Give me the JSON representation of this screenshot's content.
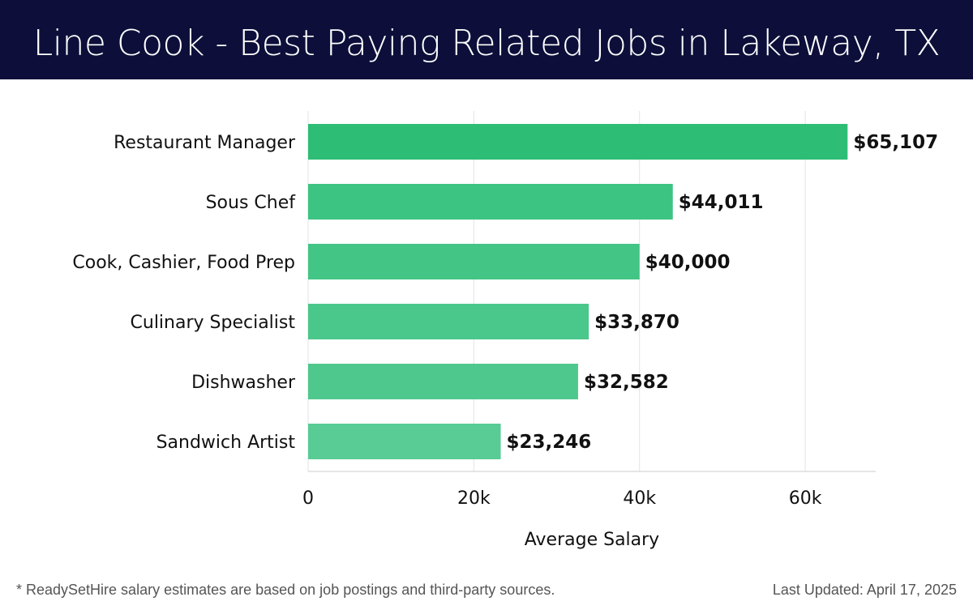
{
  "header": {
    "title": "Line Cook - Best Paying Related Jobs in Lakeway, TX"
  },
  "chart_data": {
    "type": "bar",
    "orientation": "horizontal",
    "categories": [
      "Restaurant Manager",
      "Sous Chef",
      "Cook, Cashier, Food Prep",
      "Culinary Specialist",
      "Dishwasher",
      "Sandwich Artist"
    ],
    "values": [
      65107,
      44011,
      40000,
      33870,
      32582,
      23246
    ],
    "data_labels": [
      "$65,107",
      "$44,011",
      "$40,000",
      "$33,870",
      "$32,582",
      "$23,246"
    ],
    "xlabel": "Average Salary",
    "ylabel": "",
    "xlim": [
      0,
      68500
    ],
    "x_ticks": [
      0,
      20000,
      40000,
      60000
    ],
    "x_tick_labels": [
      "0",
      "20k",
      "40k",
      "60k"
    ],
    "grid": "vertical",
    "colors": [
      "#2dbd75",
      "#3cc482",
      "#42c585",
      "#4ac78a",
      "#4fc88d",
      "#58cc94"
    ]
  },
  "footer": {
    "note": "* ReadySetHire salary estimates are based on job postings and third-party sources.",
    "updated": "Last Updated: April 17, 2025"
  }
}
